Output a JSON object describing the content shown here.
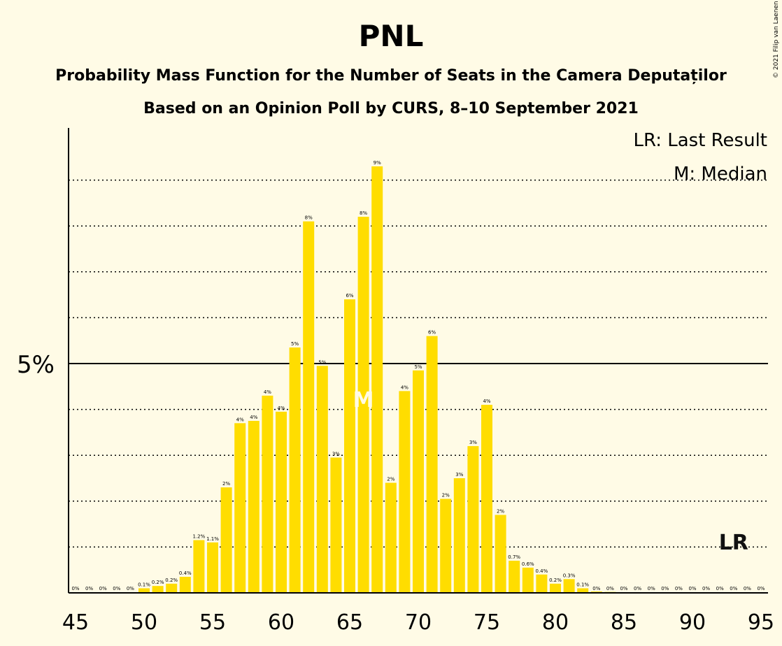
{
  "title": "PNL",
  "subtitle1": "Probability Mass Function for the Number of Seats in the Camera Deputaților",
  "subtitle2": "Based on an Opinion Poll by CURS, 8–10 September 2021",
  "copyright": "© 2021 Filip van Laenen",
  "legend": {
    "lr": "LR: Last Result",
    "m": "M: Median"
  },
  "colors": {
    "background": "#fffbe6",
    "bar": "#ffdd00",
    "text": "#111111"
  },
  "chart_data": {
    "type": "bar",
    "title": "PNL",
    "x": [
      45,
      46,
      47,
      48,
      49,
      50,
      51,
      52,
      53,
      54,
      55,
      56,
      57,
      58,
      59,
      60,
      61,
      62,
      63,
      64,
      65,
      66,
      67,
      68,
      69,
      70,
      71,
      72,
      73,
      74,
      75,
      76,
      77,
      78,
      79,
      80,
      81,
      82,
      83,
      84,
      85,
      86,
      87,
      88,
      89,
      90,
      91,
      92,
      93,
      94,
      95
    ],
    "values": [
      0,
      0,
      0,
      0,
      0,
      0.1,
      0.15,
      0.2,
      0.35,
      1.15,
      1.1,
      2.3,
      3.7,
      3.75,
      4.3,
      3.95,
      5.35,
      8.1,
      4.95,
      2.95,
      6.4,
      8.2,
      9.3,
      2.4,
      4.4,
      4.85,
      5.6,
      2.05,
      2.5,
      3.2,
      4.1,
      1.7,
      0.7,
      0.55,
      0.4,
      0.2,
      0.3,
      0.1,
      0.03,
      0.02,
      0.01,
      0,
      0,
      0,
      0,
      0,
      0,
      0,
      0,
      0,
      0
    ],
    "data_labels": [
      "0%",
      "0%",
      "0%",
      "0%",
      "0%",
      "0.1%",
      "0.2%",
      "0.2%",
      "0.4%",
      "1.2%",
      "1.1%",
      "2%",
      "4%",
      "4%",
      "4%",
      "4%",
      "5%",
      "8%",
      "5%",
      "3%",
      "6%",
      "8%",
      "9%",
      "2%",
      "4%",
      "5%",
      "6%",
      "2%",
      "3%",
      "3%",
      "4%",
      "2%",
      "0.7%",
      "0.6%",
      "0.4%",
      "0.2%",
      "0.3%",
      "0.1%",
      "0%",
      "0%",
      "0%",
      "0%",
      "0%",
      "0%",
      "0%",
      "0%",
      "0%",
      "0%",
      "0%",
      "0%",
      "0%"
    ],
    "x_ticks": [
      45,
      50,
      55,
      60,
      65,
      70,
      75,
      80,
      85,
      90,
      95
    ],
    "y_tick_label": "5%",
    "y_tick_value": 5,
    "ylim": [
      0,
      10
    ],
    "grid": "dotted horizontal every 1%",
    "median_seat": 66,
    "median_label": "M",
    "last_result_seat": 93,
    "last_result_label": "LR",
    "legend_position": "top-right"
  }
}
